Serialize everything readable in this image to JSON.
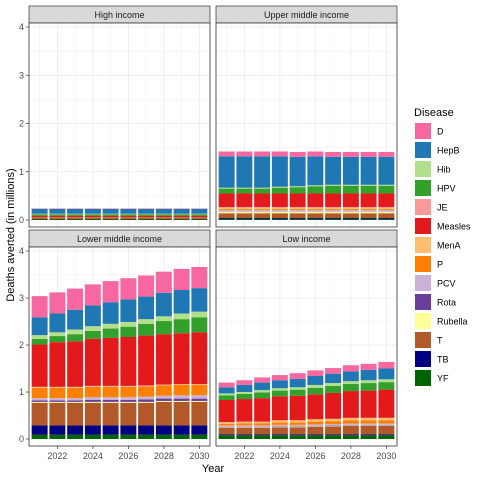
{
  "chart_data": {
    "type": "bar",
    "stacked": true,
    "xlabel": "Year",
    "ylabel": "Deaths averted (in millions)",
    "ylim": [
      0,
      4
    ],
    "yticks": [
      0,
      1,
      2,
      3,
      4
    ],
    "xticks": [
      2022,
      2024,
      2026,
      2028,
      2030
    ],
    "x": [
      2021,
      2022,
      2023,
      2024,
      2025,
      2026,
      2027,
      2028,
      2029,
      2030
    ],
    "legend": {
      "title": "Disease",
      "position": "right"
    },
    "grid": true,
    "series_colors": {
      "D": "#f768a1",
      "HepB": "#1f78b4",
      "Hib": "#b2df8a",
      "HPV": "#33a02c",
      "JE": "#fb9a99",
      "Measles": "#e31a1c",
      "MenA": "#fdbf6f",
      "P": "#ff7f00",
      "PCV": "#cab2d6",
      "Rota": "#6a3d9a",
      "Rubella": "#ffff99",
      "T": "#b15928",
      "TB": "#000080",
      "YF": "#006400"
    },
    "legend_order": [
      "D",
      "HepB",
      "Hib",
      "HPV",
      "JE",
      "Measles",
      "MenA",
      "P",
      "PCV",
      "Rota",
      "Rubella",
      "T",
      "TB",
      "YF"
    ],
    "panels": [
      {
        "title": "High income",
        "series": [
          {
            "name": "YF",
            "values": [
              0.02,
              0.02,
              0.02,
              0.02,
              0.02,
              0.02,
              0.02,
              0.02,
              0.02,
              0.02
            ]
          },
          {
            "name": "T",
            "values": [
              0.02,
              0.02,
              0.02,
              0.02,
              0.02,
              0.02,
              0.02,
              0.02,
              0.02,
              0.02
            ]
          },
          {
            "name": "Rota",
            "values": [
              0.01,
              0.01,
              0.01,
              0.01,
              0.01,
              0.01,
              0.01,
              0.01,
              0.01,
              0.01
            ]
          },
          {
            "name": "P",
            "values": [
              0.01,
              0.01,
              0.01,
              0.01,
              0.01,
              0.01,
              0.01,
              0.01,
              0.01,
              0.01
            ]
          },
          {
            "name": "Measles",
            "values": [
              0.03,
              0.03,
              0.03,
              0.03,
              0.03,
              0.03,
              0.03,
              0.03,
              0.03,
              0.03
            ]
          },
          {
            "name": "HPV",
            "values": [
              0.03,
              0.03,
              0.03,
              0.03,
              0.03,
              0.03,
              0.03,
              0.03,
              0.03,
              0.03
            ]
          },
          {
            "name": "Hib",
            "values": [
              0.01,
              0.01,
              0.01,
              0.01,
              0.01,
              0.01,
              0.01,
              0.01,
              0.01,
              0.01
            ]
          },
          {
            "name": "HepB",
            "values": [
              0.1,
              0.1,
              0.1,
              0.1,
              0.1,
              0.1,
              0.1,
              0.1,
              0.1,
              0.1
            ]
          },
          {
            "name": "D",
            "values": [
              0.01,
              0.01,
              0.01,
              0.01,
              0.01,
              0.01,
              0.01,
              0.01,
              0.01,
              0.01
            ]
          }
        ]
      },
      {
        "title": "Upper middle income",
        "series": [
          {
            "name": "YF",
            "values": [
              0.02,
              0.02,
              0.02,
              0.02,
              0.02,
              0.02,
              0.02,
              0.02,
              0.02,
              0.02
            ]
          },
          {
            "name": "TB",
            "values": [
              0.02,
              0.02,
              0.02,
              0.02,
              0.02,
              0.02,
              0.02,
              0.02,
              0.02,
              0.02
            ]
          },
          {
            "name": "T",
            "values": [
              0.1,
              0.1,
              0.1,
              0.1,
              0.1,
              0.1,
              0.1,
              0.1,
              0.1,
              0.1
            ]
          },
          {
            "name": "Rubella",
            "values": [
              0.04,
              0.04,
              0.04,
              0.04,
              0.04,
              0.04,
              0.04,
              0.04,
              0.04,
              0.04
            ]
          },
          {
            "name": "Rota",
            "values": [
              0.01,
              0.01,
              0.01,
              0.01,
              0.01,
              0.01,
              0.01,
              0.01,
              0.01,
              0.01
            ]
          },
          {
            "name": "PCV",
            "values": [
              0.02,
              0.02,
              0.02,
              0.02,
              0.02,
              0.02,
              0.02,
              0.02,
              0.02,
              0.02
            ]
          },
          {
            "name": "P",
            "values": [
              0.02,
              0.02,
              0.02,
              0.02,
              0.02,
              0.02,
              0.02,
              0.02,
              0.02,
              0.02
            ]
          },
          {
            "name": "MenA",
            "values": [
              0.02,
              0.02,
              0.02,
              0.02,
              0.02,
              0.02,
              0.02,
              0.02,
              0.02,
              0.02
            ]
          },
          {
            "name": "JE",
            "values": [
              0.02,
              0.02,
              0.02,
              0.02,
              0.02,
              0.02,
              0.02,
              0.02,
              0.02,
              0.02
            ]
          },
          {
            "name": "Measles",
            "values": [
              0.28,
              0.28,
              0.28,
              0.28,
              0.28,
              0.28,
              0.28,
              0.28,
              0.28,
              0.28
            ]
          },
          {
            "name": "HPV",
            "values": [
              0.1,
              0.1,
              0.1,
              0.12,
              0.13,
              0.15,
              0.16,
              0.16,
              0.16,
              0.16
            ]
          },
          {
            "name": "Hib",
            "values": [
              0.02,
              0.02,
              0.02,
              0.02,
              0.02,
              0.02,
              0.02,
              0.02,
              0.02,
              0.02
            ]
          },
          {
            "name": "HepB",
            "values": [
              0.65,
              0.65,
              0.65,
              0.63,
              0.61,
              0.6,
              0.58,
              0.58,
              0.58,
              0.58
            ]
          },
          {
            "name": "D",
            "values": [
              0.1,
              0.1,
              0.1,
              0.1,
              0.1,
              0.1,
              0.1,
              0.1,
              0.1,
              0.1
            ]
          }
        ]
      },
      {
        "title": "Lower middle income",
        "series": [
          {
            "name": "YF",
            "values": [
              0.09,
              0.09,
              0.09,
              0.09,
              0.09,
              0.09,
              0.09,
              0.09,
              0.09,
              0.09
            ]
          },
          {
            "name": "TB",
            "values": [
              0.2,
              0.2,
              0.2,
              0.2,
              0.2,
              0.2,
              0.2,
              0.2,
              0.2,
              0.2
            ]
          },
          {
            "name": "T",
            "values": [
              0.48,
              0.48,
              0.48,
              0.48,
              0.48,
              0.48,
              0.48,
              0.5,
              0.5,
              0.5
            ]
          },
          {
            "name": "Rubella",
            "values": [
              0.02,
              0.02,
              0.02,
              0.02,
              0.02,
              0.02,
              0.02,
              0.02,
              0.02,
              0.02
            ]
          },
          {
            "name": "Rota",
            "values": [
              0.03,
              0.03,
              0.03,
              0.04,
              0.04,
              0.04,
              0.05,
              0.05,
              0.05,
              0.05
            ]
          },
          {
            "name": "PCV",
            "values": [
              0.05,
              0.05,
              0.05,
              0.06,
              0.06,
              0.06,
              0.06,
              0.06,
              0.07,
              0.07
            ]
          },
          {
            "name": "P",
            "values": [
              0.22,
              0.22,
              0.22,
              0.22,
              0.22,
              0.22,
              0.22,
              0.22,
              0.22,
              0.22
            ]
          },
          {
            "name": "MenA",
            "values": [
              0.01,
              0.01,
              0.01,
              0.01,
              0.01,
              0.01,
              0.01,
              0.01,
              0.01,
              0.01
            ]
          },
          {
            "name": "JE",
            "values": [
              0.01,
              0.01,
              0.01,
              0.01,
              0.01,
              0.01,
              0.01,
              0.01,
              0.01,
              0.01
            ]
          },
          {
            "name": "Measles",
            "values": [
              0.9,
              0.95,
              0.97,
              1.0,
              1.02,
              1.04,
              1.06,
              1.07,
              1.08,
              1.1
            ]
          },
          {
            "name": "HPV",
            "values": [
              0.12,
              0.13,
              0.15,
              0.17,
              0.2,
              0.22,
              0.25,
              0.28,
              0.3,
              0.32
            ]
          },
          {
            "name": "Hib",
            "values": [
              0.08,
              0.08,
              0.1,
              0.1,
              0.1,
              0.1,
              0.1,
              0.1,
              0.12,
              0.12
            ]
          },
          {
            "name": "HepB",
            "values": [
              0.38,
              0.4,
              0.42,
              0.44,
              0.46,
              0.48,
              0.48,
              0.5,
              0.5,
              0.5
            ]
          },
          {
            "name": "D",
            "values": [
              0.45,
              0.45,
              0.45,
              0.45,
              0.45,
              0.45,
              0.45,
              0.45,
              0.45,
              0.45
            ]
          }
        ]
      },
      {
        "title": "Low income",
        "series": [
          {
            "name": "YF",
            "values": [
              0.08,
              0.08,
              0.08,
              0.08,
              0.08,
              0.08,
              0.08,
              0.08,
              0.08,
              0.08
            ]
          },
          {
            "name": "TB",
            "values": [
              0.02,
              0.02,
              0.02,
              0.02,
              0.02,
              0.02,
              0.02,
              0.02,
              0.02,
              0.02
            ]
          },
          {
            "name": "T",
            "values": [
              0.14,
              0.14,
              0.14,
              0.15,
              0.15,
              0.16,
              0.17,
              0.18,
              0.18,
              0.18
            ]
          },
          {
            "name": "Rubella",
            "values": [
              0.01,
              0.01,
              0.01,
              0.01,
              0.01,
              0.01,
              0.01,
              0.01,
              0.01,
              0.01
            ]
          },
          {
            "name": "Rota",
            "values": [
              0.01,
              0.01,
              0.01,
              0.01,
              0.01,
              0.01,
              0.01,
              0.01,
              0.01,
              0.01
            ]
          },
          {
            "name": "PCV",
            "values": [
              0.03,
              0.03,
              0.03,
              0.03,
              0.03,
              0.03,
              0.03,
              0.03,
              0.03,
              0.03
            ]
          },
          {
            "name": "P",
            "values": [
              0.03,
              0.04,
              0.04,
              0.05,
              0.05,
              0.06,
              0.06,
              0.07,
              0.07,
              0.07
            ]
          },
          {
            "name": "MenA",
            "values": [
              0.04,
              0.04,
              0.04,
              0.05,
              0.05,
              0.05,
              0.05,
              0.05,
              0.05,
              0.05
            ]
          },
          {
            "name": "Measles",
            "values": [
              0.47,
              0.48,
              0.5,
              0.51,
              0.52,
              0.53,
              0.55,
              0.57,
              0.58,
              0.6
            ]
          },
          {
            "name": "HPV",
            "values": [
              0.1,
              0.11,
              0.12,
              0.12,
              0.13,
              0.14,
              0.15,
              0.15,
              0.16,
              0.16
            ]
          },
          {
            "name": "Hib",
            "values": [
              0.04,
              0.04,
              0.05,
              0.05,
              0.05,
              0.06,
              0.06,
              0.06,
              0.06,
              0.06
            ]
          },
          {
            "name": "HepB",
            "values": [
              0.13,
              0.15,
              0.16,
              0.17,
              0.18,
              0.19,
              0.2,
              0.21,
              0.22,
              0.23
            ]
          },
          {
            "name": "D",
            "values": [
              0.1,
              0.1,
              0.11,
              0.11,
              0.12,
              0.12,
              0.12,
              0.13,
              0.13,
              0.14
            ]
          }
        ]
      }
    ]
  }
}
